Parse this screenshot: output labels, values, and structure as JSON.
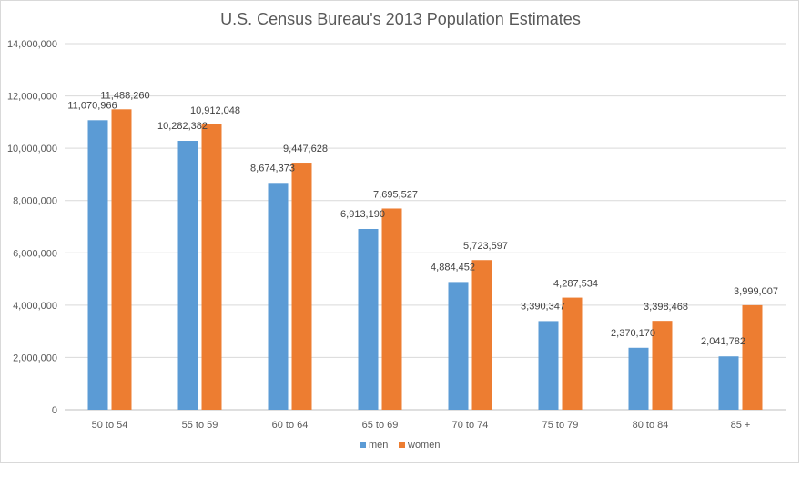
{
  "chart_data": {
    "type": "bar",
    "title": "U.S. Census Bureau's 2013 Population Estimates",
    "xlabel": "",
    "ylabel": "",
    "categories": [
      "50 to 54",
      "55 to 59",
      "60 to 64",
      "65 to 69",
      "70 to 74",
      "75 to 79",
      "80 to 84",
      "85 +"
    ],
    "series": [
      {
        "name": "men",
        "color": "#5b9bd5",
        "values": [
          11070966,
          10282382,
          8674373,
          6913190,
          4884452,
          3390347,
          2370170,
          2041782
        ],
        "labels": [
          "11,070,966",
          "10,282,382",
          "8,674,373",
          "6,913,190",
          "4,884,452",
          "3,390,347",
          "2,370,170",
          "2,041,782"
        ]
      },
      {
        "name": "women",
        "color": "#ed7d31",
        "values": [
          11488260,
          10912048,
          9447628,
          7695527,
          5723597,
          4287534,
          3398468,
          3999007
        ],
        "labels": [
          "11,488,260",
          "10,912,048",
          "9,447,628",
          "7,695,527",
          "5,723,597",
          "4,287,534",
          "3,398,468",
          "3,999,007"
        ]
      }
    ],
    "ylim": [
      0,
      14000000
    ],
    "yticks": [
      0,
      2000000,
      4000000,
      6000000,
      8000000,
      10000000,
      12000000,
      14000000
    ],
    "ytick_labels": [
      "0",
      "2,000,000",
      "4,000,000",
      "6,000,000",
      "8,000,000",
      "10,000,000",
      "12,000,000",
      "14,000,000"
    ],
    "grid": true,
    "legend_position": "bottom"
  }
}
